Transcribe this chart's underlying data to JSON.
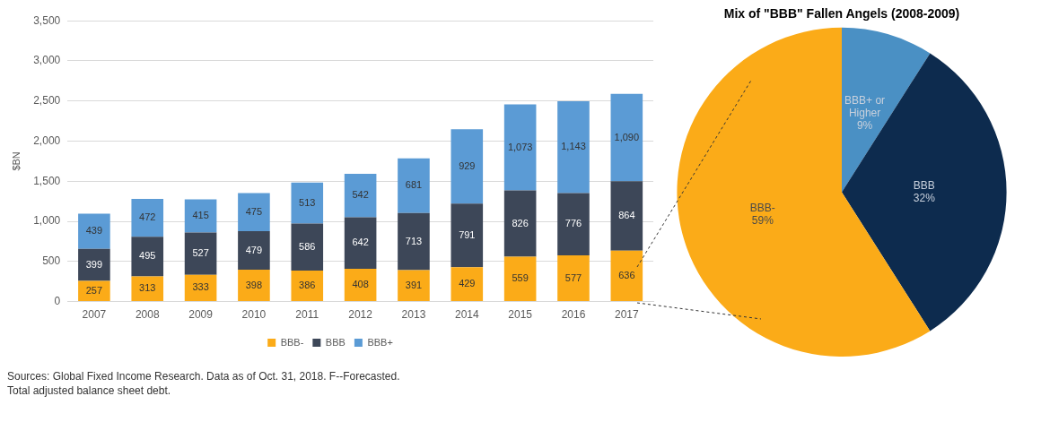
{
  "chart_data": [
    {
      "type": "bar",
      "ylabel": "$BN",
      "stacked": true,
      "grid": "y",
      "legend": "bottom",
      "categories": [
        "2007",
        "2008",
        "2009",
        "2010",
        "2011",
        "2012",
        "2013",
        "2014",
        "2015",
        "2016",
        "2017"
      ],
      "series": [
        {
          "name": "BBB-",
          "color": "#fbab18",
          "values": [
            257,
            313,
            333,
            398,
            386,
            408,
            391,
            429,
            559,
            577,
            636
          ],
          "value_labels": [
            "257",
            "313",
            "333",
            "398",
            "386",
            "408",
            "391",
            "429",
            "559",
            "577",
            "636"
          ]
        },
        {
          "name": "BBB",
          "color": "#3d4758",
          "values": [
            399,
            495,
            527,
            479,
            586,
            642,
            713,
            791,
            826,
            776,
            864
          ],
          "value_labels": [
            "399",
            "495",
            "527",
            "479",
            "586",
            "642",
            "713",
            "791",
            "826",
            "776",
            "864"
          ]
        },
        {
          "name": "BBB+",
          "color": "#5b9bd5",
          "values": [
            439,
            472,
            415,
            475,
            513,
            542,
            681,
            929,
            1073,
            1143,
            1090
          ],
          "value_labels": [
            "439",
            "472",
            "415",
            "475",
            "513",
            "542",
            "681",
            "929",
            "1,073",
            "1,143",
            "1,090"
          ]
        }
      ],
      "ylim": [
        0,
        3500
      ],
      "yticks": [
        0,
        500,
        {
          "value": 1000,
          "label": "1,000"
        },
        {
          "value": 1500,
          "label": "1,500"
        },
        {
          "value": 2000,
          "label": "2,000"
        },
        {
          "value": 2500,
          "label": "2,500"
        },
        {
          "value": 3000,
          "label": "3,000"
        },
        {
          "value": 3500,
          "label": "3,500"
        }
      ],
      "annotations": [
        "Sources: Global Fixed Income Research. Data as of Oct. 31, 2018. F--Forecasted.",
        "Total adjusted balance sheet debt."
      ]
    },
    {
      "type": "pie",
      "title": "Mix of \"BBB\" Fallen Angels (2008-2009)",
      "legend": false,
      "categories": [
        "BBB+ or Higher",
        "BBB",
        "BBB-"
      ],
      "values": [
        9,
        32,
        59
      ],
      "colors": [
        "#4a90c4",
        "#0d2b4e",
        "#fbab18"
      ],
      "value_labels": [
        "9%",
        "32%",
        "59%"
      ]
    }
  ]
}
